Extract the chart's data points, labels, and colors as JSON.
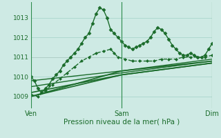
{
  "bg_color": "#ceeae4",
  "grid_color": "#a8d5cc",
  "line_color": "#1a6b2a",
  "title": "Pression niveau de la mer( hPa )",
  "xtick_labels": [
    "Ven",
    "Sam",
    "Dim"
  ],
  "xtick_pos": [
    0.0,
    0.5,
    1.0
  ],
  "yticks": [
    1009,
    1010,
    1011,
    1012,
    1013
  ],
  "ylim": [
    1008.4,
    1013.8
  ],
  "xlim": [
    0.0,
    1.0
  ],
  "series": [
    {
      "x": [
        0.0,
        0.02,
        0.04,
        0.06,
        0.08,
        0.1,
        0.12,
        0.14,
        0.16,
        0.18,
        0.2,
        0.22,
        0.24,
        0.26,
        0.28,
        0.3,
        0.32,
        0.34,
        0.36,
        0.38,
        0.4,
        0.42,
        0.44,
        0.46,
        0.48,
        0.5,
        0.52,
        0.54,
        0.56,
        0.58,
        0.6,
        0.62,
        0.64,
        0.66,
        0.68,
        0.7,
        0.72,
        0.74,
        0.76,
        0.78,
        0.8,
        0.82,
        0.84,
        0.86,
        0.88,
        0.9,
        0.92,
        0.94,
        0.96,
        0.98,
        1.0
      ],
      "y": [
        1010.0,
        1009.8,
        1009.4,
        1009.2,
        1009.4,
        1009.6,
        1009.9,
        1010.1,
        1010.3,
        1010.6,
        1010.8,
        1011.0,
        1011.2,
        1011.4,
        1011.7,
        1012.0,
        1012.2,
        1012.7,
        1013.2,
        1013.5,
        1013.4,
        1013.0,
        1012.4,
        1012.2,
        1012.0,
        1011.8,
        1011.6,
        1011.5,
        1011.4,
        1011.5,
        1011.6,
        1011.7,
        1011.8,
        1012.0,
        1012.3,
        1012.5,
        1012.4,
        1012.2,
        1011.9,
        1011.6,
        1011.4,
        1011.2,
        1011.1,
        1011.1,
        1011.2,
        1011.1,
        1011.0,
        1011.0,
        1011.1,
        1011.4,
        1011.7
      ],
      "marker": "D",
      "markersize": 2.5,
      "linewidth": 1.0,
      "linestyle": "-"
    },
    {
      "x": [
        0.0,
        0.04,
        0.08,
        0.12,
        0.16,
        0.2,
        0.24,
        0.28,
        0.32,
        0.36,
        0.4,
        0.44,
        0.46,
        0.48,
        0.52,
        0.56,
        0.6,
        0.64,
        0.68,
        0.72,
        0.76,
        0.8,
        0.84,
        0.88,
        0.92,
        0.96,
        1.0
      ],
      "y": [
        1009.1,
        1009.0,
        1009.3,
        1009.6,
        1009.9,
        1010.2,
        1010.5,
        1010.8,
        1011.0,
        1011.2,
        1011.3,
        1011.4,
        1011.2,
        1011.0,
        1010.9,
        1010.8,
        1010.8,
        1010.8,
        1010.8,
        1010.9,
        1010.9,
        1010.9,
        1011.0,
        1011.0,
        1011.0,
        1011.0,
        1011.1
      ],
      "marker": "D",
      "markersize": 2.0,
      "linewidth": 1.0,
      "linestyle": "--"
    },
    {
      "x": [
        0.0,
        0.5,
        1.0
      ],
      "y": [
        1009.0,
        1010.3,
        1010.8
      ],
      "marker": null,
      "markersize": 0,
      "linewidth": 1.2,
      "linestyle": "-"
    },
    {
      "x": [
        0.0,
        0.5,
        1.0
      ],
      "y": [
        1009.0,
        1010.1,
        1010.7
      ],
      "marker": null,
      "markersize": 0,
      "linewidth": 1.2,
      "linestyle": "-"
    },
    {
      "x": [
        0.0,
        0.5,
        1.0
      ],
      "y": [
        1009.2,
        1010.1,
        1010.7
      ],
      "marker": null,
      "markersize": 0,
      "linewidth": 1.2,
      "linestyle": "-"
    },
    {
      "x": [
        0.0,
        0.5,
        1.0
      ],
      "y": [
        1009.5,
        1010.2,
        1010.8
      ],
      "marker": null,
      "markersize": 0,
      "linewidth": 1.0,
      "linestyle": "-"
    },
    {
      "x": [
        0.0,
        0.5,
        1.0
      ],
      "y": [
        1009.8,
        1010.3,
        1010.9
      ],
      "marker": null,
      "markersize": 0,
      "linewidth": 1.0,
      "linestyle": "-"
    }
  ],
  "figsize": [
    3.2,
    2.0
  ],
  "dpi": 100
}
